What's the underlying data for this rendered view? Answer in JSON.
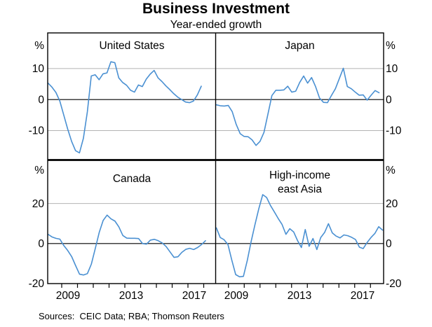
{
  "page": {
    "title": "Business Investment",
    "subtitle": "Year-ended growth",
    "sources_note": "Sources:  CEIC Data; RBA; Thomson Reuters"
  },
  "colors": {
    "line": "#4a90d2",
    "grid": "#b3b3b3",
    "axis": "#000000",
    "background": "#ffffff"
  },
  "chart_data": [
    {
      "type": "line",
      "panel": "top-left",
      "title": "United States",
      "unit": "%",
      "axis_side": "left",
      "ylim": [
        -19.5,
        21.5
      ],
      "yticks": [
        10,
        0,
        -10
      ],
      "x_tick_labels": [
        "2009",
        "2013",
        "2017"
      ],
      "x_note": "quarterly, 2008-2017",
      "values": [
        5.3,
        4.0,
        2.3,
        -0.5,
        -5.0,
        -9.5,
        -13.5,
        -16.5,
        -17.2,
        -12.5,
        -4.0,
        7.6,
        8.0,
        6.4,
        8.3,
        8.6,
        12.2,
        11.9,
        7.0,
        5.5,
        4.6,
        3.0,
        2.4,
        4.7,
        4.2,
        6.6,
        8.2,
        9.4,
        7.0,
        5.8,
        4.4,
        3.2,
        1.9,
        0.8,
        0.0,
        -0.8,
        -1.0,
        -0.5,
        1.5,
        4.3
      ]
    },
    {
      "type": "line",
      "panel": "top-right",
      "title": "Japan",
      "unit": "%",
      "axis_side": "right",
      "ylim": [
        -19.5,
        21.5
      ],
      "yticks": [
        10,
        0,
        -10
      ],
      "x_tick_labels": [
        "2009",
        "2013",
        "2017"
      ],
      "x_note": "quarterly, 2008-2017",
      "values": [
        -1.7,
        -2.0,
        -2.1,
        -1.9,
        -3.9,
        -8.0,
        -11.0,
        -11.9,
        -12.0,
        -13.0,
        -14.8,
        -13.5,
        -10.6,
        -4.7,
        1.3,
        3.0,
        3.0,
        3.1,
        4.3,
        2.4,
        2.7,
        5.5,
        7.6,
        5.3,
        7.1,
        4.2,
        0.5,
        -0.9,
        -1.0,
        1.3,
        3.5,
        6.8,
        10.1,
        4.2,
        3.5,
        2.4,
        1.4,
        1.5,
        -0.2,
        1.4,
        2.9,
        2.2
      ]
    },
    {
      "type": "line",
      "panel": "bottom-left",
      "title": "Canada",
      "unit": "%",
      "axis_side": "left",
      "ylim": [
        -20,
        41.7
      ],
      "yticks": [
        20,
        0,
        -20
      ],
      "x_tick_labels": [
        "2009",
        "2013",
        "2017"
      ],
      "x_note": "quarterly, 2008-2017",
      "values": [
        4.6,
        3.3,
        2.6,
        2.2,
        -1.0,
        -3.5,
        -6.5,
        -11.0,
        -15.3,
        -15.7,
        -15.0,
        -10.3,
        -2.5,
        5.5,
        11.5,
        14.2,
        12.3,
        11.2,
        8.3,
        4.0,
        2.7,
        2.6,
        2.6,
        2.5,
        0.0,
        -0.3,
        1.7,
        2.1,
        1.4,
        0.3,
        -1.5,
        -4.2,
        -6.9,
        -6.6,
        -4.4,
        -2.9,
        -2.4,
        -3.0,
        -2.0,
        -0.5,
        1.4
      ]
    },
    {
      "type": "line",
      "panel": "bottom-right",
      "title": "High-income east Asia",
      "title_lines": [
        "High-income",
        "east Asia"
      ],
      "unit": "%",
      "axis_side": "right",
      "ylim": [
        -20,
        41.7
      ],
      "yticks": [
        20,
        0,
        -20
      ],
      "x_tick_labels": [
        "2009",
        "2013",
        "2017"
      ],
      "x_note": "quarterly, 2008-2017",
      "values": [
        7.8,
        3.0,
        1.9,
        -0.5,
        -8.3,
        -15.5,
        -16.6,
        -16.4,
        -8.5,
        1.0,
        9.5,
        17.5,
        24.4,
        23.0,
        19.0,
        15.8,
        12.5,
        9.5,
        4.6,
        7.4,
        5.8,
        1.5,
        -2.0,
        7.0,
        -1.4,
        2.5,
        -3.0,
        3.0,
        5.5,
        9.9,
        5.3,
        3.7,
        2.8,
        4.3,
        3.9,
        3.1,
        2.0,
        -1.8,
        -2.5,
        0.5,
        3.0,
        5.0,
        8.4,
        6.7
      ]
    }
  ]
}
